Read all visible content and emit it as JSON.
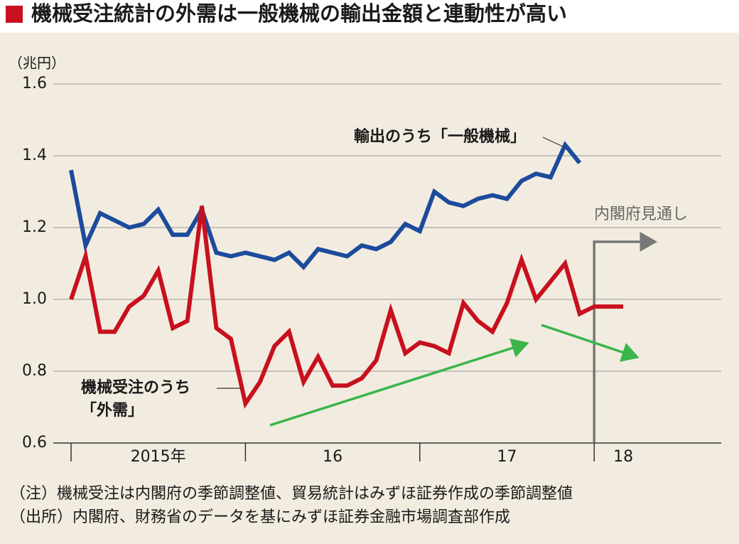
{
  "chart_data": {
    "type": "line",
    "title": "機械受注統計の外需は一般機械の輸出金額と連動性が高い",
    "y_unit": "（兆円）",
    "annotation": "内閣府見通し",
    "notes": [
      "（注）機械受注は内閣府の季節調整値、貿易統計はみずほ証券作成の季節調整値",
      "（出所）内閣府、財務省のデータを基にみずほ証券金融市場調査部作成"
    ],
    "categories": [
      null,
      null,
      null,
      null,
      null,
      null,
      "2015年",
      null,
      null,
      null,
      null,
      null,
      null,
      null,
      null,
      null,
      null,
      null,
      "16",
      null,
      null,
      null,
      null,
      null,
      null,
      null,
      null,
      null,
      null,
      null,
      "17",
      null,
      null,
      null,
      null,
      null,
      null,
      null,
      "18"
    ],
    "ylim": [
      0.6,
      1.6
    ],
    "yticks": [
      0.6,
      0.8,
      {
        "value": 1,
        "label": "1.0"
      },
      1.2,
      1.4,
      1.6
    ],
    "grid": true,
    "series": [
      {
        "name": "輸出のうち「一般機械」",
        "color": "#1c4b9c",
        "values": [
          1.36,
          1.15,
          1.24,
          1.22,
          1.2,
          1.21,
          1.25,
          1.18,
          1.18,
          1.25,
          1.13,
          1.12,
          1.13,
          1.12,
          1.11,
          1.13,
          1.09,
          1.14,
          1.13,
          1.12,
          1.15,
          1.14,
          1.16,
          1.21,
          1.19,
          1.3,
          1.27,
          1.26,
          1.28,
          1.29,
          1.28,
          1.33,
          1.35,
          1.34,
          1.43,
          1.38,
          null,
          null,
          null
        ]
      },
      {
        "name": "機械受注のうち「外需」",
        "color": "#c8101e",
        "values": [
          1.0,
          1.12,
          0.91,
          0.91,
          0.98,
          1.01,
          1.08,
          0.92,
          0.94,
          1.26,
          0.92,
          0.89,
          0.71,
          0.77,
          0.87,
          0.91,
          0.77,
          0.84,
          0.76,
          0.76,
          0.78,
          0.83,
          0.97,
          0.85,
          0.88,
          0.87,
          0.85,
          0.99,
          0.94,
          0.91,
          0.99,
          1.11,
          1.0,
          1.05,
          1.1,
          0.96,
          0.98,
          0.98,
          0.98
        ]
      }
    ]
  }
}
